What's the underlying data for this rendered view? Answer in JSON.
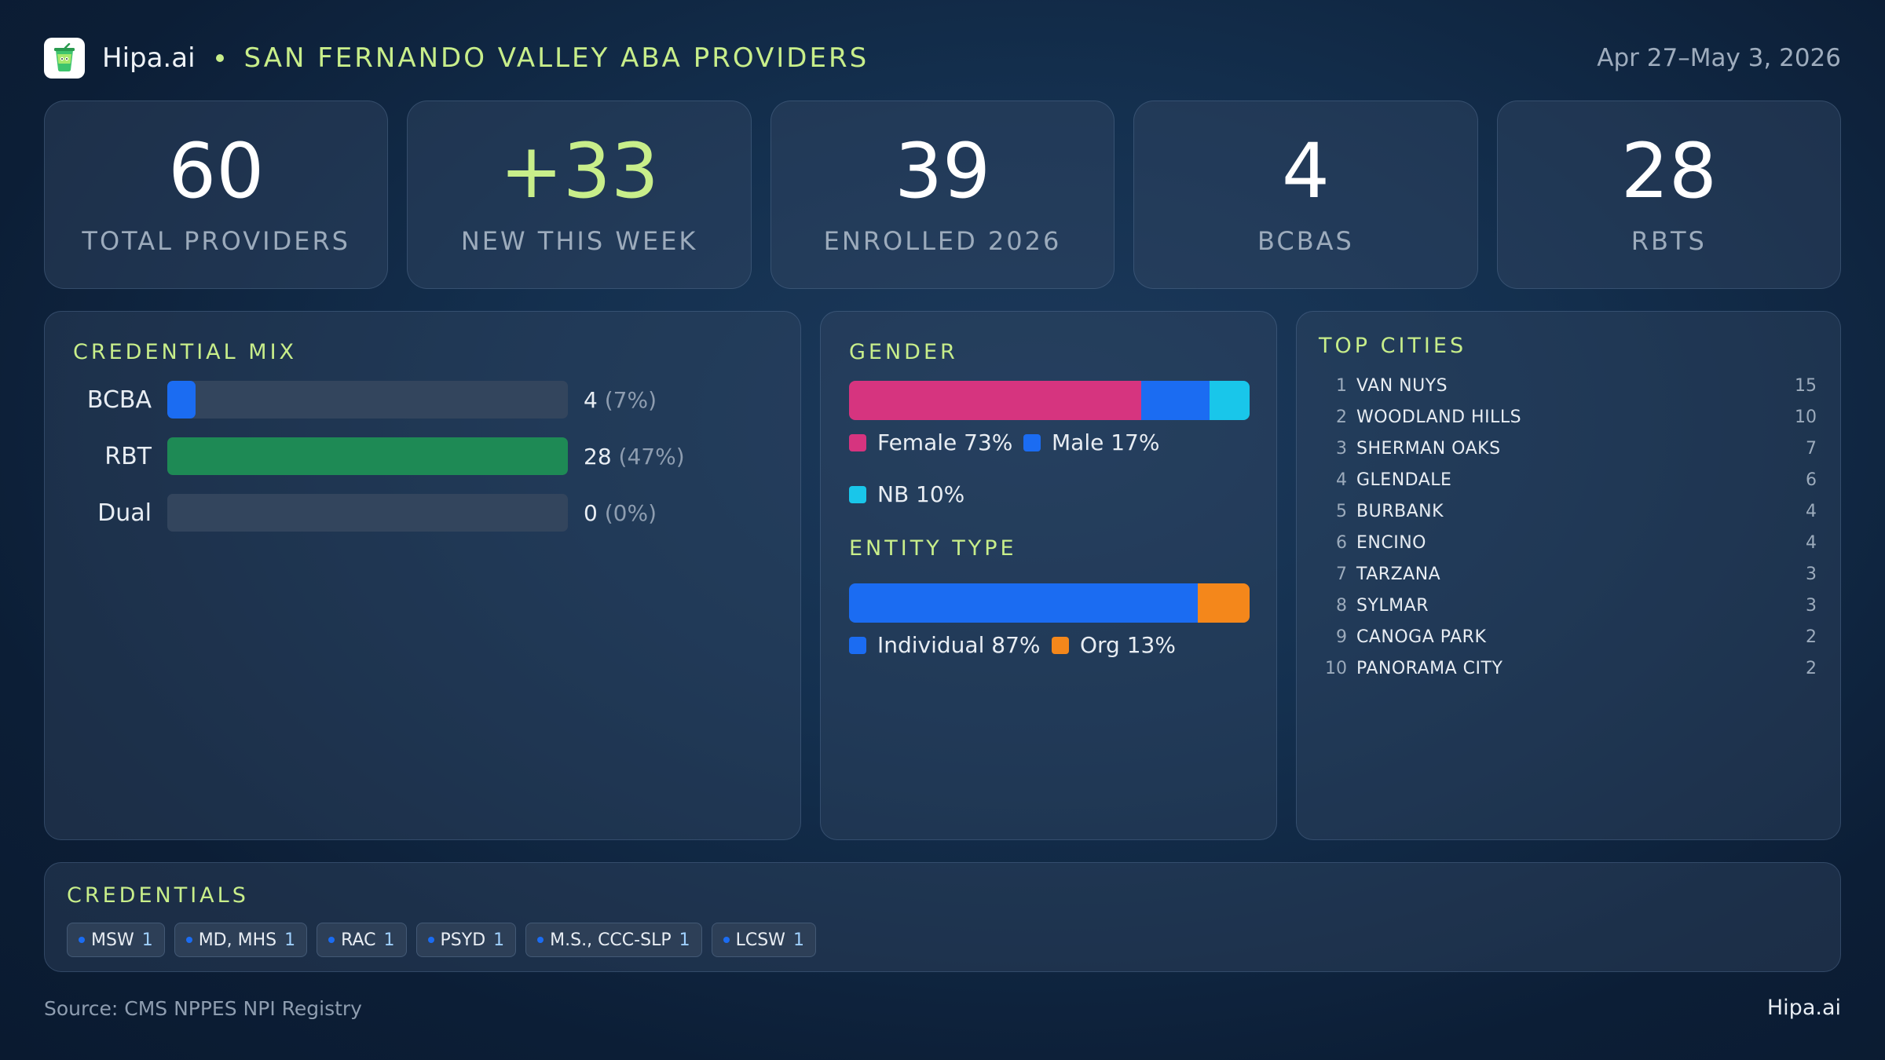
{
  "header": {
    "brand": "Hipa.ai",
    "title": "SAN FERNANDO VALLEY ABA PROVIDERS",
    "date_range": "Apr 27–May 3, 2026"
  },
  "stats": [
    {
      "value": "60",
      "label": "TOTAL PROVIDERS"
    },
    {
      "value": "+33",
      "label": "NEW THIS WEEK"
    },
    {
      "value": "39",
      "label": "ENROLLED 2026"
    },
    {
      "value": "4",
      "label": "BCBAS"
    },
    {
      "value": "28",
      "label": "RBTS"
    }
  ],
  "credential_mix": {
    "title": "CREDENTIAL MIX",
    "rows": [
      {
        "label": "BCBA",
        "count": "4",
        "pct": "(7%)",
        "fraction": 0.07,
        "color": "#1b6cf2"
      },
      {
        "label": "RBT",
        "count": "28",
        "pct": "(47%)",
        "fraction": 1.0,
        "color": "#1e8a55"
      },
      {
        "label": "Dual",
        "count": "0",
        "pct": "(0%)",
        "fraction": 0.0,
        "color": "#1b6cf2"
      }
    ]
  },
  "gender": {
    "title": "GENDER",
    "segments": [
      {
        "label": "Female 73%",
        "fraction": 0.73,
        "color": "#d6347f"
      },
      {
        "label": "Male 17%",
        "fraction": 0.17,
        "color": "#1b6cf2"
      },
      {
        "label": "NB 10%",
        "fraction": 0.1,
        "color": "#19c6ea"
      }
    ]
  },
  "entity_type": {
    "title": "ENTITY TYPE",
    "segments": [
      {
        "label": "Individual 87%",
        "fraction": 0.87,
        "color": "#1b6cf2"
      },
      {
        "label": "Org 13%",
        "fraction": 0.13,
        "color": "#f4871b"
      }
    ]
  },
  "top_cities": {
    "title": "TOP CITIES",
    "rows": [
      {
        "rank": "1",
        "name": "VAN NUYS",
        "count": "15"
      },
      {
        "rank": "2",
        "name": "WOODLAND HILLS",
        "count": "10"
      },
      {
        "rank": "3",
        "name": "SHERMAN OAKS",
        "count": "7"
      },
      {
        "rank": "4",
        "name": "GLENDALE",
        "count": "6"
      },
      {
        "rank": "5",
        "name": "BURBANK",
        "count": "4"
      },
      {
        "rank": "6",
        "name": "ENCINO",
        "count": "4"
      },
      {
        "rank": "7",
        "name": "TARZANA",
        "count": "3"
      },
      {
        "rank": "8",
        "name": "SYLMAR",
        "count": "3"
      },
      {
        "rank": "9",
        "name": "CANOGA PARK",
        "count": "2"
      },
      {
        "rank": "10",
        "name": "PANORAMA CITY",
        "count": "2"
      }
    ]
  },
  "credentials": {
    "title": "CREDENTIALS",
    "chips": [
      {
        "label": "MSW",
        "count": "1"
      },
      {
        "label": "MD, MHS",
        "count": "1"
      },
      {
        "label": "RAC",
        "count": "1"
      },
      {
        "label": "PSYD",
        "count": "1"
      },
      {
        "label": "M.S., CCC-SLP",
        "count": "1"
      },
      {
        "label": "LCSW",
        "count": "1"
      }
    ]
  },
  "footer": {
    "source": "Source: CMS NPPES NPI Registry",
    "brand": "Hipa.ai"
  },
  "icons": {
    "logo": "cup-icon"
  },
  "colors": {
    "accent": "#c8ee8a"
  }
}
